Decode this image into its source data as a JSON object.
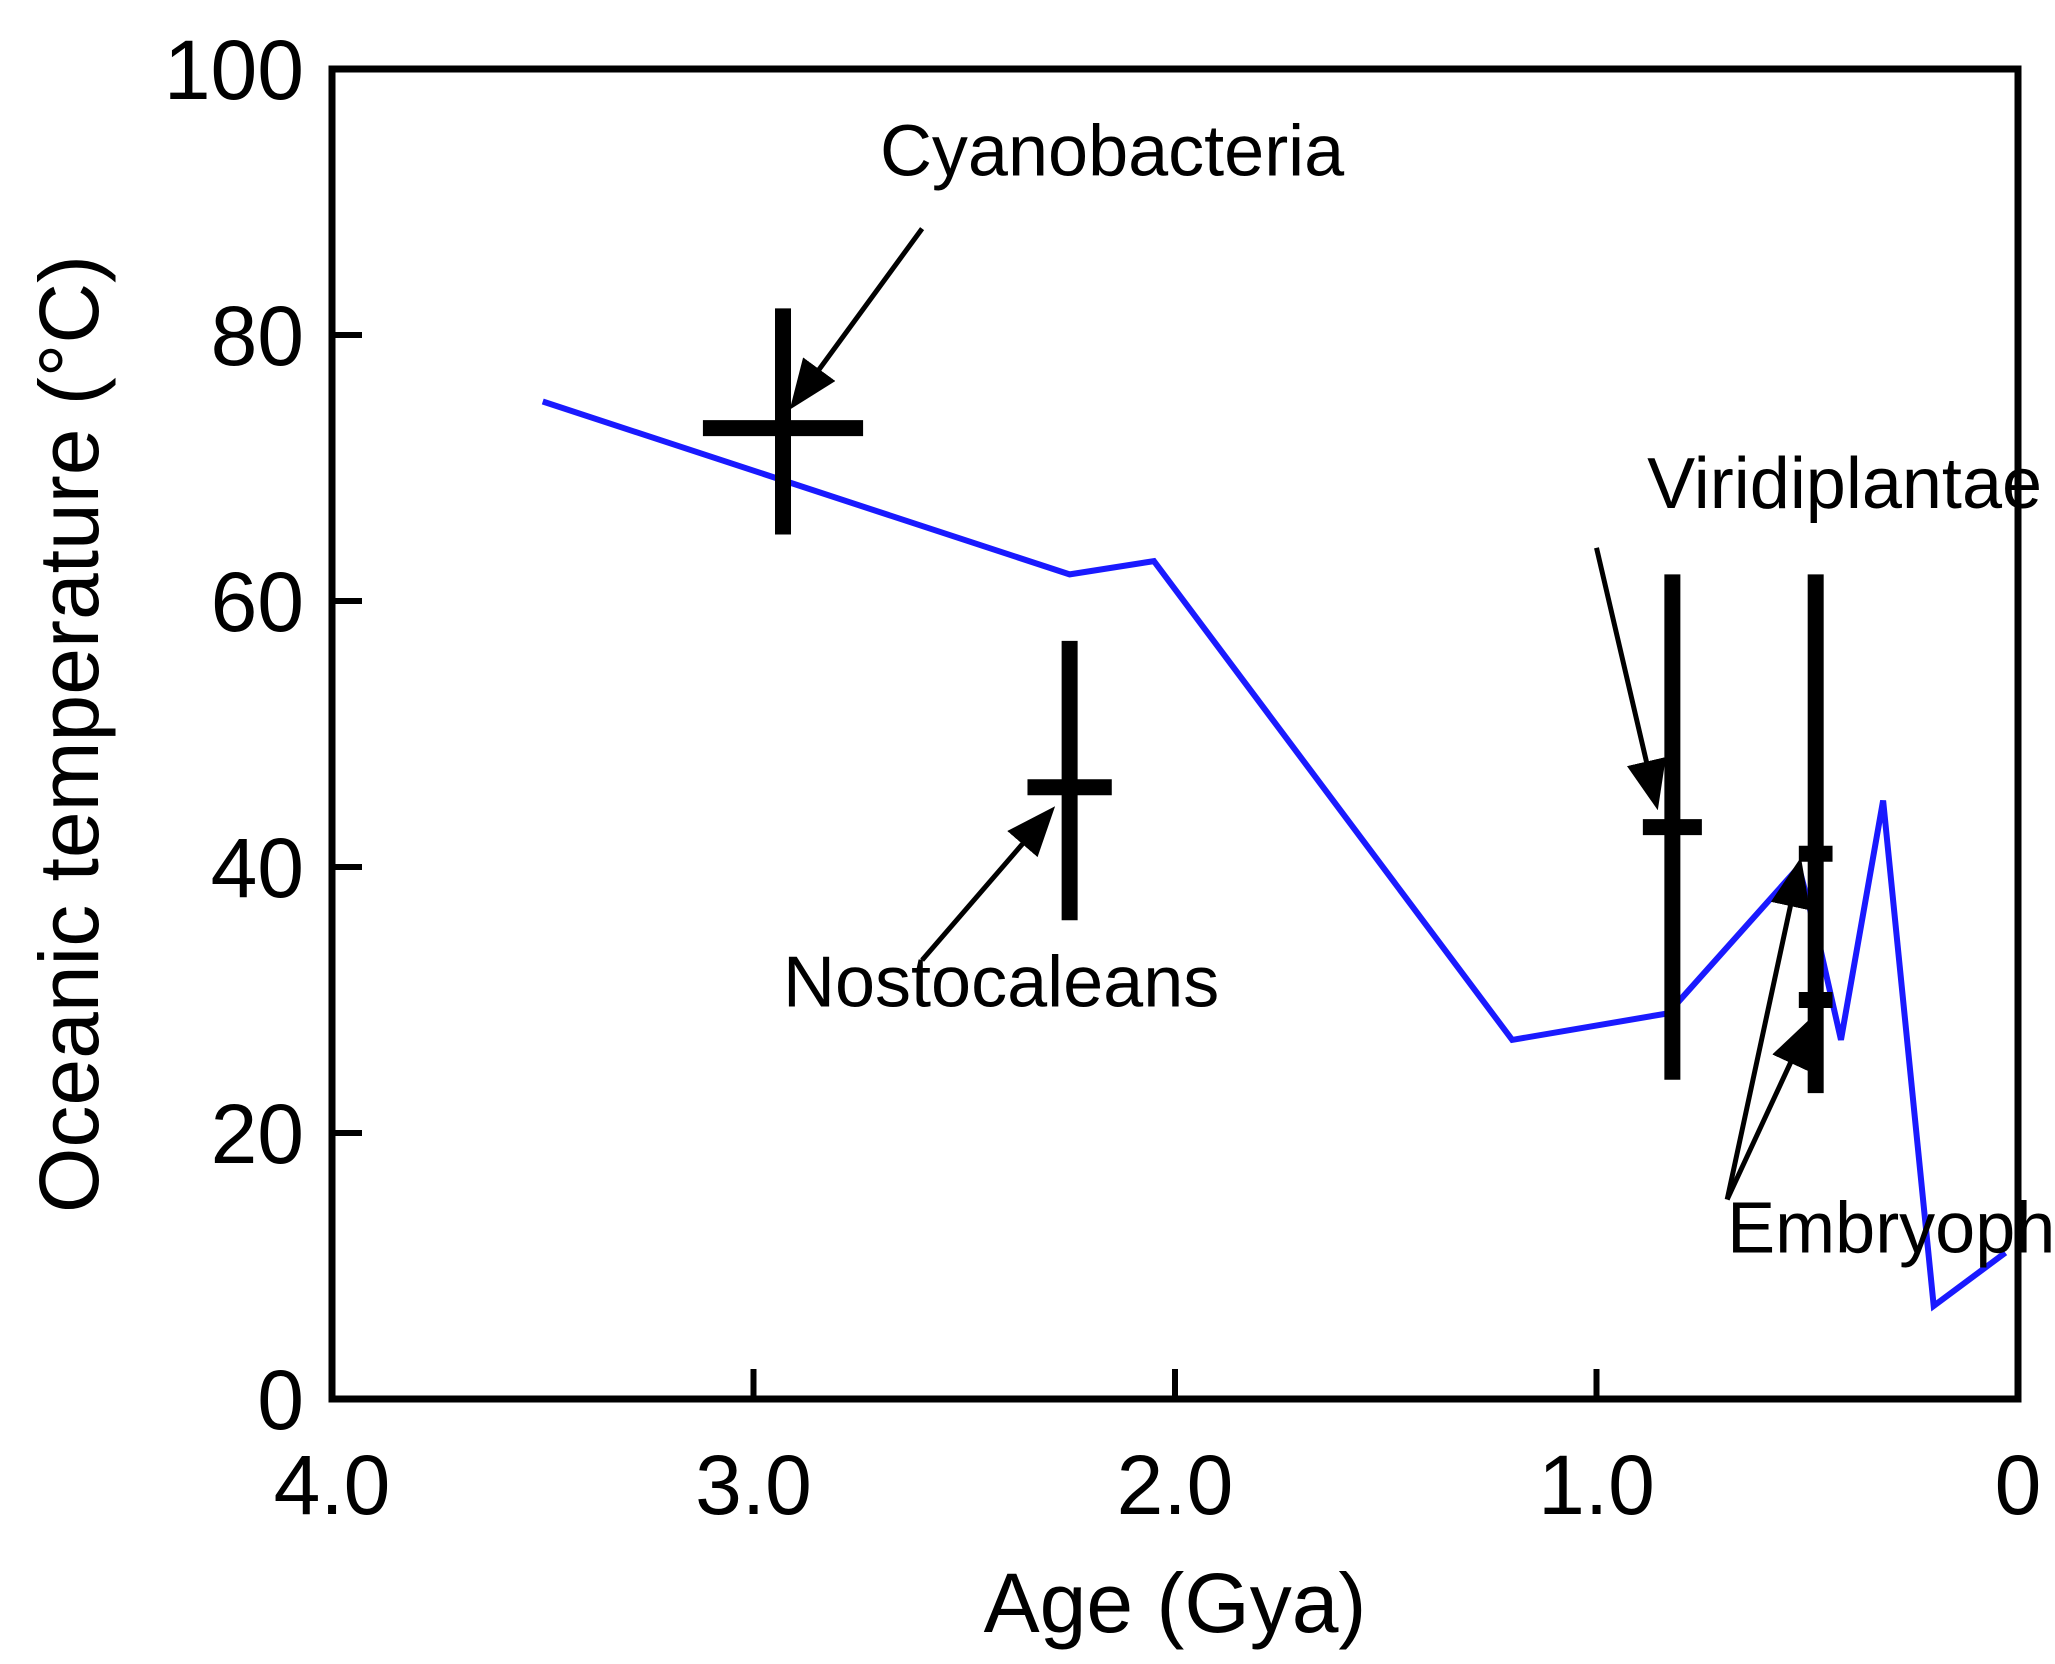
{
  "chart_data": {
    "type": "line",
    "title": "",
    "xlabel": "Age (Gya)",
    "ylabel": "Oceanic temperature (°C)",
    "xlim": [
      4.0,
      0
    ],
    "ylim": [
      0,
      100
    ],
    "x_ticks": [
      4.0,
      3.0,
      2.0,
      1.0,
      0
    ],
    "x_tick_labels": [
      "4.0",
      "3.0",
      "2.0",
      "1.0",
      "0"
    ],
    "y_ticks": [
      0,
      20,
      40,
      60,
      80,
      100
    ],
    "y_tick_labels": [
      "0",
      "20",
      "40",
      "60",
      "80",
      "100"
    ],
    "grid": false,
    "series": [
      {
        "name": "Oceanic temperature",
        "color": "#1a1aff",
        "x": [
          3.5,
          2.25,
          2.05,
          1.2,
          0.83,
          0.52,
          0.47,
          0.42,
          0.32,
          0.2,
          0.03
        ],
        "y": [
          75,
          62,
          63,
          27,
          29,
          40,
          34,
          27,
          45,
          7,
          11
        ]
      }
    ],
    "markers": [
      {
        "name": "Cyanobacteria",
        "x": 2.93,
        "y": 73,
        "x_err": 0.19,
        "y_low": 65,
        "y_high": 82
      },
      {
        "name": "Nostocaleans",
        "x": 2.25,
        "y": 46,
        "x_err": 0.1,
        "y_low": 36,
        "y_high": 57
      },
      {
        "name": "Viridiplantae",
        "x": 0.82,
        "y": 43,
        "x_err": 0.07,
        "y_low": 24,
        "y_high": 62
      },
      {
        "name": "Embryophyta",
        "x": 0.48,
        "y": 41,
        "x_err": 0.04,
        "y_low": 23,
        "y_high": 62
      },
      {
        "name": "Embryophyta",
        "x": 0.48,
        "y": 30,
        "x_err": 0.04,
        "y_low": 30,
        "y_high": 30
      }
    ],
    "annotations": [
      {
        "text": "Cyanobacteria",
        "label_x": 2.7,
        "label_y": 92,
        "arrow_from": [
          2.6,
          88
        ],
        "arrow_to": [
          2.9,
          75
        ]
      },
      {
        "text": "Nostocaleans",
        "label_x": 2.93,
        "label_y": 29.5,
        "arrow_from": [
          2.6,
          33
        ],
        "arrow_to": [
          2.3,
          44
        ]
      },
      {
        "text": "Viridiplantae",
        "label_x": 0.88,
        "label_y": 67,
        "arrow_from": [
          1.0,
          64
        ],
        "arrow_to": [
          0.86,
          45
        ]
      },
      {
        "text": "Embryophyta",
        "label_x": 0.69,
        "label_y": 11,
        "arrow_from": [
          0.69,
          15
        ],
        "arrow_to": [
          [
            0.52,
            40
          ],
          [
            0.5,
            28
          ]
        ]
      }
    ]
  }
}
